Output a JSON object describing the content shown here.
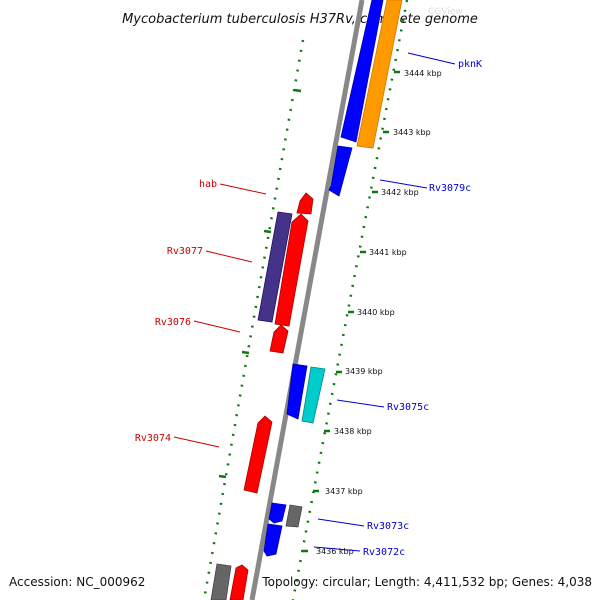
{
  "title": "Mycobacterium tuberculosis H37Rv, complete genome",
  "watermark": "CGView",
  "accession": "Accession: NC_000962",
  "topology": "Topology: circular; Length: 4,411,532 bp; Genes: 4,038",
  "kbp_ticks": [
    {
      "kbp": 3444,
      "label": "3444 kbp"
    },
    {
      "kbp": 3443,
      "label": "3443 kbp"
    },
    {
      "kbp": 3442,
      "label": "3442 kbp"
    },
    {
      "kbp": 3441,
      "label": "3441 kbp"
    },
    {
      "kbp": 3440,
      "label": "3440 kbp"
    },
    {
      "kbp": 3439,
      "label": "3439 kbp"
    },
    {
      "kbp": 3438,
      "label": "3438 kbp"
    },
    {
      "kbp": 3437,
      "label": "3437 kbp"
    },
    {
      "kbp": 3436,
      "label": "3436 kbp"
    }
  ],
  "genes": [
    {
      "name": "pknK",
      "strand": "reverse",
      "color": "#0000cc"
    },
    {
      "name": "Rv3079c",
      "strand": "reverse",
      "color": "#0000cc"
    },
    {
      "name": "hab",
      "strand": "forward",
      "color": "#cc0000"
    },
    {
      "name": "Rv3077",
      "strand": "forward",
      "color": "#cc0000"
    },
    {
      "name": "Rv3076",
      "strand": "forward",
      "color": "#cc0000"
    },
    {
      "name": "Rv3075c",
      "strand": "reverse",
      "color": "#0000cc"
    },
    {
      "name": "Rv3074",
      "strand": "forward",
      "color": "#cc0000"
    },
    {
      "name": "Rv3073c",
      "strand": "reverse",
      "color": "#0000cc"
    },
    {
      "name": "Rv3072c",
      "strand": "reverse",
      "color": "#0000cc"
    }
  ],
  "colors": {
    "forward_gene": "#ff0000",
    "reverse_gene": "#0000ff",
    "label_forward": "#cc0000",
    "label_reverse": "#0000cc",
    "backbone": "#888888",
    "tick_marks": "#117711",
    "orange_feature": "#ff9900",
    "cyan_feature": "#00cccc",
    "navy_feature": "#443388",
    "grey_feature": "#666666"
  }
}
